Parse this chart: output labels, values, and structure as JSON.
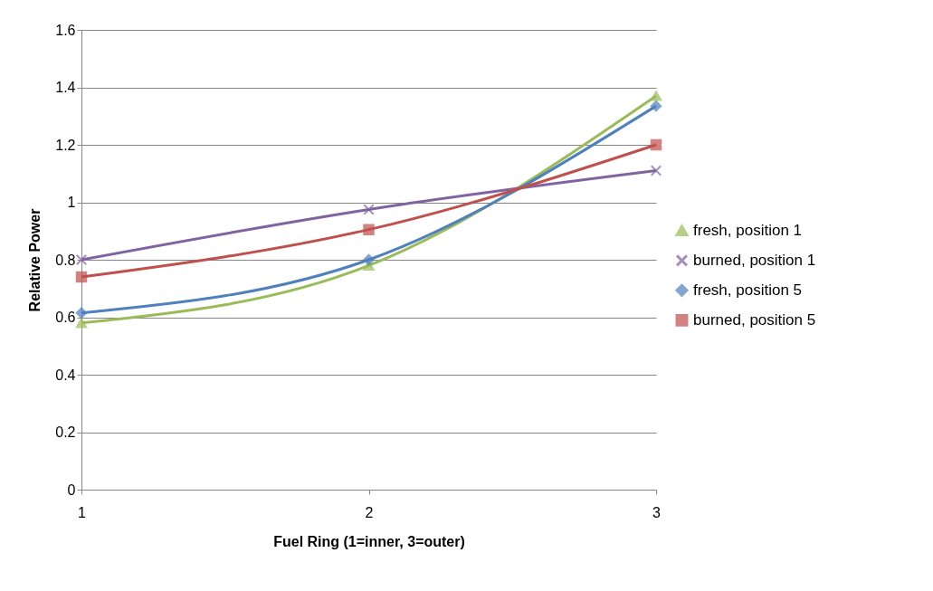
{
  "chart_data": {
    "type": "line",
    "xlabel": "Fuel Ring (1=inner, 3=outer)",
    "ylabel": "Relative Power",
    "x": [
      1,
      2,
      3
    ],
    "xlim": [
      1,
      3
    ],
    "xticks": [
      1,
      2,
      3
    ],
    "ylim": [
      0,
      1.6
    ],
    "yticks": [
      0,
      0.2,
      0.4,
      0.6,
      0.8,
      1,
      1.2,
      1.4,
      1.6
    ],
    "grid": "y",
    "legend": "right",
    "series": [
      {
        "name": "fresh, position 1",
        "color": "#9bbb59",
        "marker": "triangle",
        "values": [
          0.58,
          0.78,
          1.37
        ]
      },
      {
        "name": "burned, position 1",
        "color": "#8064a2",
        "marker": "cross",
        "values": [
          0.8,
          0.975,
          1.11
        ]
      },
      {
        "name": "fresh, position 5",
        "color": "#4f81bd",
        "marker": "diamond",
        "values": [
          0.615,
          0.8,
          1.335
        ]
      },
      {
        "name": "burned, position 5",
        "color": "#c0504d",
        "marker": "square",
        "values": [
          0.74,
          0.905,
          1.2
        ]
      }
    ]
  }
}
